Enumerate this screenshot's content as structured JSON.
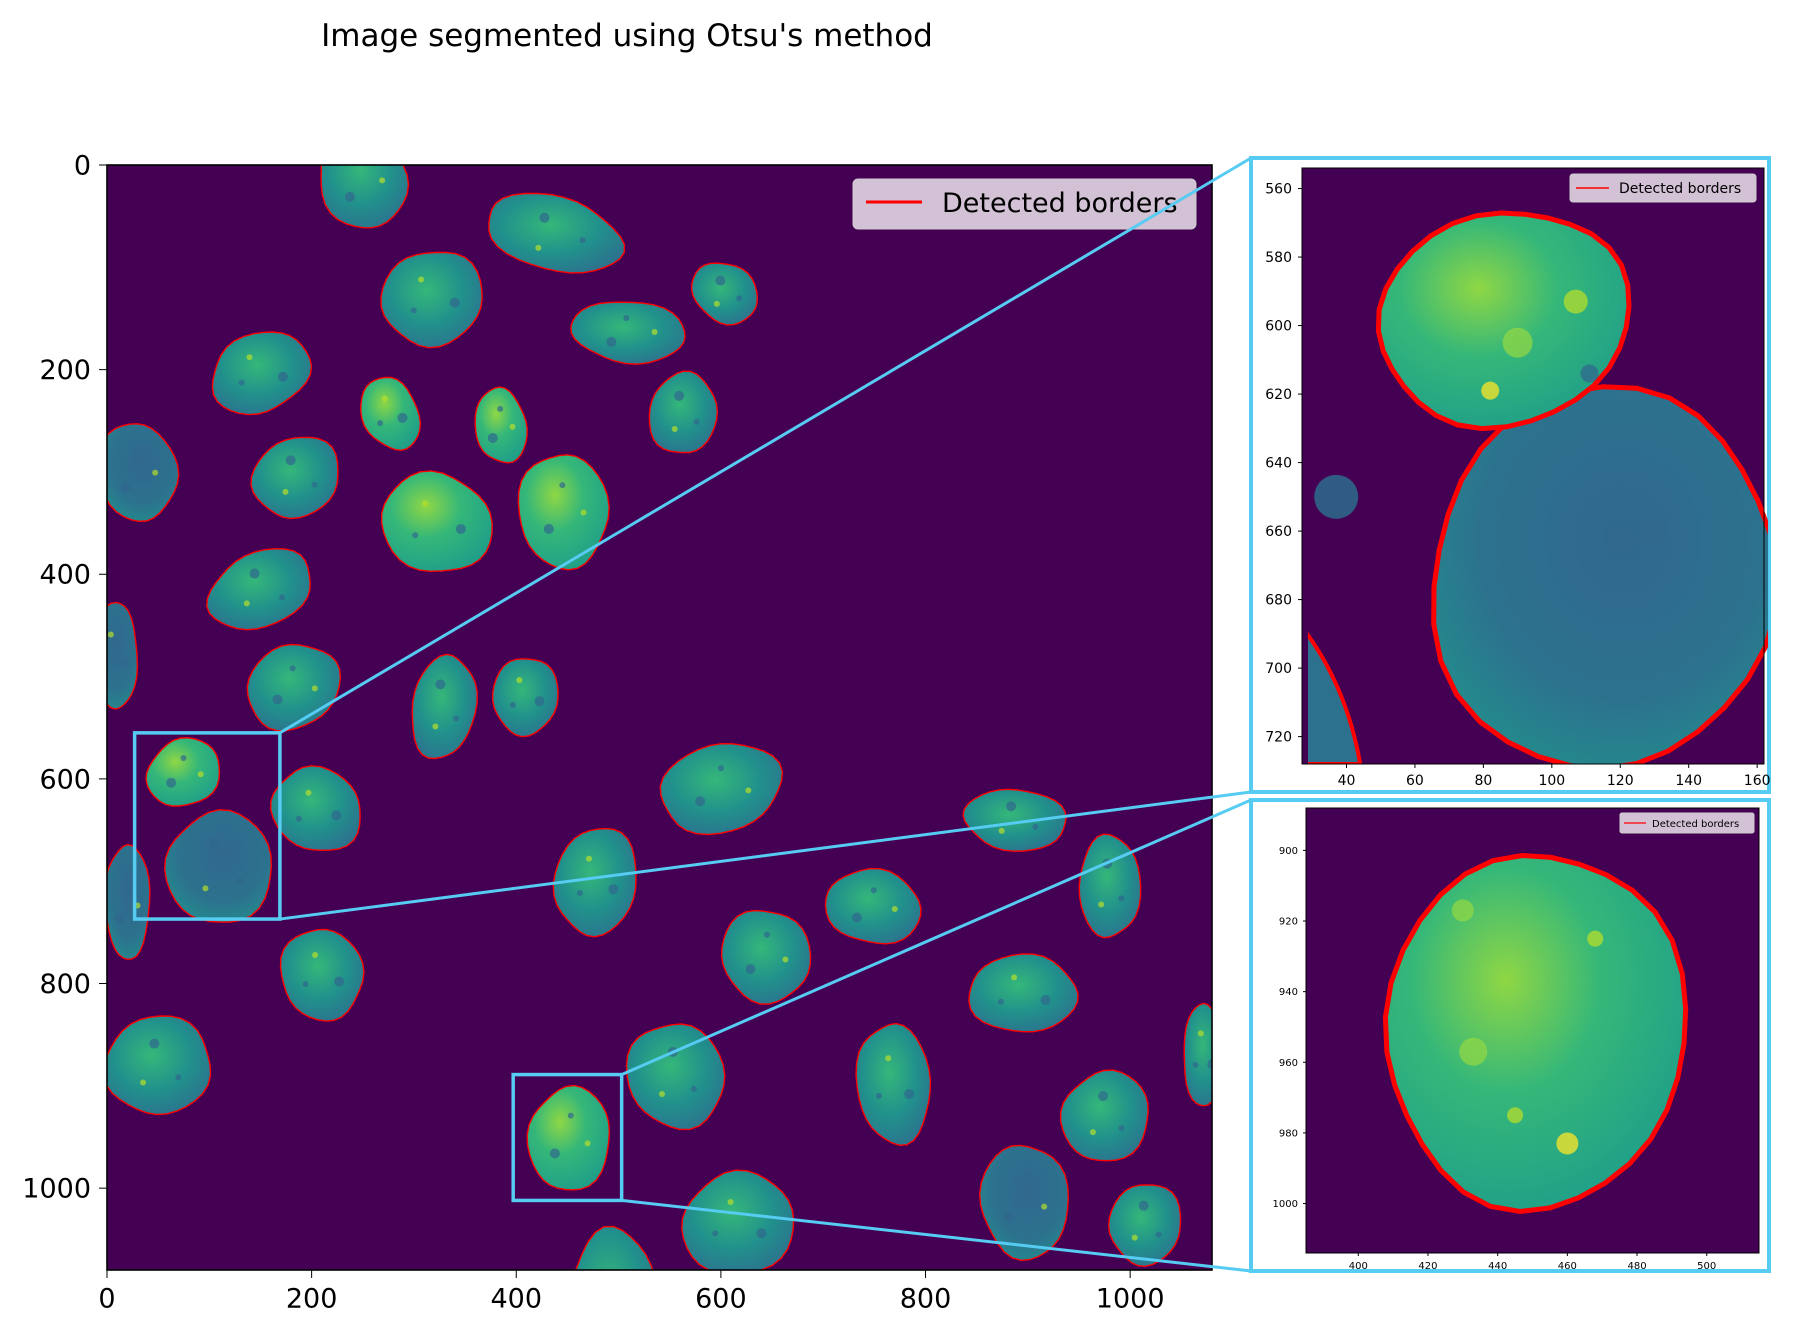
{
  "title": "Image segmented using Otsu's method",
  "colors": {
    "background": "#440154",
    "nucleus_dark": "#2c728e",
    "nucleus_mid": "#21918c",
    "nucleus_light": "#5ec962",
    "nucleus_bright": "#fde725",
    "border": "#ff0000",
    "zoom_frame": "#56ccf2"
  },
  "chart_data": [
    {
      "type": "image",
      "panel": "main",
      "xlim": [
        0,
        1080
      ],
      "ylim": [
        1080,
        0
      ],
      "xticks": [
        0,
        200,
        400,
        600,
        800,
        1000
      ],
      "yticks": [
        0,
        200,
        400,
        600,
        800,
        1000
      ],
      "legend": {
        "entries": [
          "Detected borders"
        ],
        "placement": "top-right"
      },
      "zoom_regions": [
        {
          "x0": 27,
          "x1": 169,
          "y0": 555,
          "y1": 737
        },
        {
          "x0": 397,
          "x1": 503,
          "y0": 889,
          "y1": 1012
        }
      ]
    },
    {
      "type": "image",
      "panel": "inset-top",
      "xlim": [
        27,
        162
      ],
      "ylim": [
        728,
        554
      ],
      "xticks": [
        40,
        60,
        80,
        100,
        120,
        140,
        160
      ],
      "yticks": [
        560,
        580,
        600,
        620,
        640,
        660,
        680,
        700,
        720
      ],
      "legend": {
        "entries": [
          "Detected borders"
        ],
        "placement": "top-right"
      }
    },
    {
      "type": "image",
      "panel": "inset-bottom",
      "xlim": [
        385,
        515
      ],
      "ylim": [
        1014,
        888
      ],
      "xticks": [
        400,
        420,
        440,
        460,
        480,
        500
      ],
      "yticks": [
        900,
        920,
        940,
        960,
        980,
        1000
      ],
      "legend": {
        "entries": [
          "Detected borders"
        ],
        "placement": "top-right"
      }
    }
  ]
}
